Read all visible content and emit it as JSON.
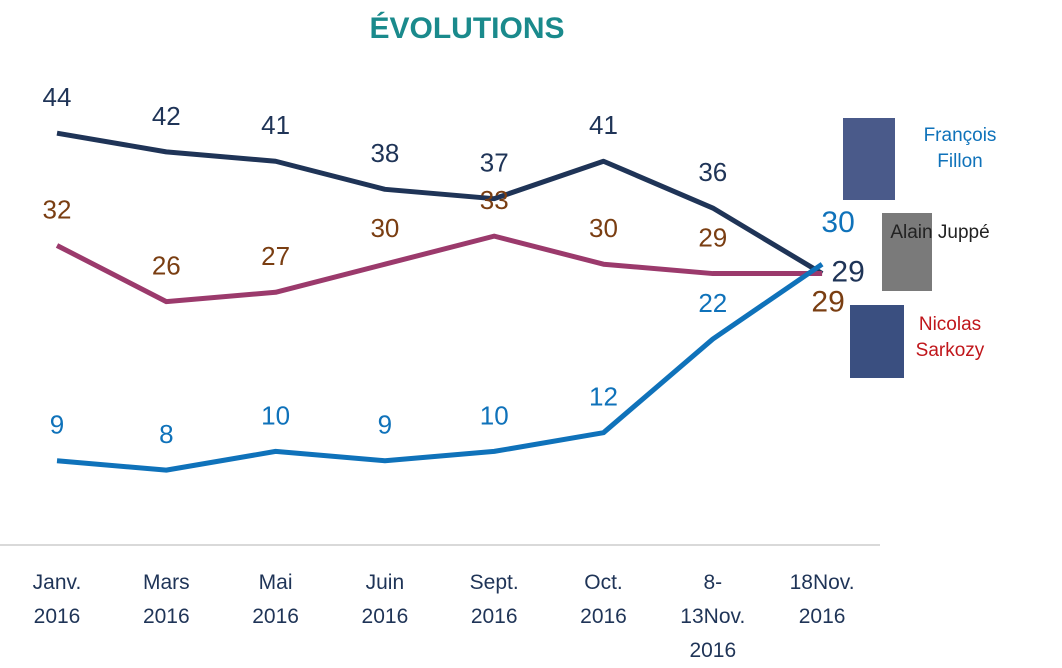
{
  "chart_data": {
    "type": "line",
    "title": "ÉVOLUTIONS",
    "categories": [
      "Janv. 2016",
      "Mars 2016",
      "Mai 2016",
      "Juin 2016",
      "Sept. 2016",
      "Oct. 2016",
      "8-13Nov. 2016",
      "18Nov. 2016"
    ],
    "ylim": [
      0,
      50
    ],
    "series": [
      {
        "name": "Alain Juppé",
        "color": "#1f3457",
        "label_color": "#1f3457",
        "name_color": "#222222",
        "values": [
          44,
          42,
          41,
          38,
          37,
          41,
          36,
          29
        ]
      },
      {
        "name": "Nicolas Sarkozy",
        "color": "#9b3a6c",
        "label_color": "#7a3e12",
        "name_color": "#c0161b",
        "values": [
          32,
          26,
          27,
          30,
          33,
          30,
          29,
          29
        ]
      },
      {
        "name": "François Fillon",
        "color": "#0f72ba",
        "label_color": "#0f72ba",
        "name_color": "#0f72ba",
        "values": [
          9,
          8,
          10,
          9,
          10,
          12,
          22,
          30
        ]
      }
    ]
  }
}
